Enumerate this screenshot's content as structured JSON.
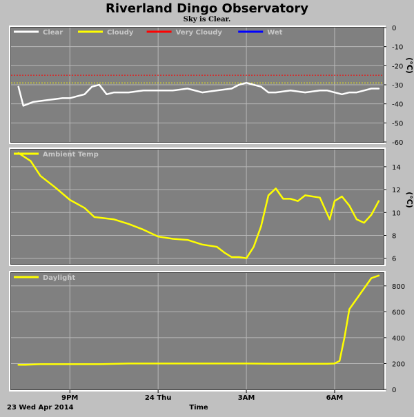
{
  "header": {
    "title": "Riverland Dingo Observatory",
    "subtitle": "Sky is Clear."
  },
  "footer": {
    "date_label": "23 Wed Apr 2014",
    "axis_label": "Time"
  },
  "x_ticks": [
    "9PM",
    "24 Thu",
    "3AM",
    "6AM"
  ],
  "colors": {
    "page_bg": "#c0c0c0",
    "plot_bg": "#808080",
    "grid": "#b8b8b8",
    "clear": "#ffffff",
    "cloudy": "#ffff00",
    "very_cloudy": "#ff0000",
    "wet": "#0000ff",
    "line_yellow": "#ffff00"
  },
  "chart_data": [
    {
      "type": "line",
      "unit_label": "(°C)",
      "ylim": [
        -60,
        0
      ],
      "yticks": [
        0,
        -10,
        -20,
        -30,
        -40,
        -50,
        -60
      ],
      "grid": true,
      "legend": "top-left",
      "legend_entries": [
        {
          "name": "Clear",
          "color": "#ffffff"
        },
        {
          "name": "Cloudy",
          "color": "#ffff00"
        },
        {
          "name": "Very Cloudy",
          "color": "#ff0000"
        },
        {
          "name": "Wet",
          "color": "#0000ff"
        }
      ],
      "thresholds": [
        {
          "name": "Very Cloudy",
          "value": -25,
          "color": "#ff0000"
        },
        {
          "name": "Cloudy",
          "value": -29,
          "color": "#ffff00"
        }
      ],
      "series": [
        {
          "name": "Clear",
          "color": "#ffffff",
          "x": [
            "19:15",
            "19:25",
            "19:45",
            "20:15",
            "20:45",
            "21:00",
            "21:15",
            "21:30",
            "21:45",
            "22:00",
            "22:15",
            "22:30",
            "22:45",
            "23:00",
            "23:30",
            "00:00",
            "00:30",
            "01:00",
            "01:30",
            "02:00",
            "02:30",
            "02:45",
            "03:00",
            "03:15",
            "03:30",
            "03:45",
            "04:00",
            "04:30",
            "05:00",
            "05:30",
            "05:45",
            "06:00",
            "06:15",
            "06:30",
            "06:45",
            "07:00",
            "07:15",
            "07:30"
          ],
          "values": [
            -31,
            -41,
            -39,
            -38,
            -37,
            -37,
            -36,
            -35,
            -31,
            -30,
            -35,
            -34,
            -34,
            -34,
            -33,
            -33,
            -33,
            -32,
            -34,
            -33,
            -32,
            -30,
            -29,
            -30,
            -31,
            -34,
            -34,
            -33,
            -34,
            -33,
            -33,
            -34,
            -35,
            -34,
            -34,
            -33,
            -32,
            -32
          ]
        }
      ]
    },
    {
      "type": "line",
      "unit_label": "(°C)",
      "ylim": [
        5.5,
        15.5
      ],
      "yticks": [
        6,
        8,
        10,
        12,
        14
      ],
      "grid": true,
      "legend": "top-left",
      "legend_entries": [
        {
          "name": "Ambient Temp",
          "color": "#ffff00"
        }
      ],
      "series": [
        {
          "name": "Ambient Temp",
          "color": "#ffff00",
          "x": [
            "19:15",
            "19:40",
            "20:00",
            "20:30",
            "21:00",
            "21:30",
            "21:50",
            "22:30",
            "23:00",
            "23:30",
            "00:00",
            "00:30",
            "01:00",
            "01:30",
            "02:00",
            "02:15",
            "02:30",
            "02:45",
            "03:00",
            "03:15",
            "03:30",
            "03:45",
            "04:00",
            "04:15",
            "04:30",
            "04:45",
            "05:00",
            "05:30",
            "05:50",
            "06:00",
            "06:15",
            "06:30",
            "06:45",
            "07:00",
            "07:15",
            "07:30"
          ],
          "values": [
            15.2,
            14.5,
            13.2,
            12.2,
            11.1,
            10.4,
            9.6,
            9.4,
            9.0,
            8.5,
            7.9,
            7.7,
            7.6,
            7.2,
            7.0,
            6.5,
            6.1,
            6.1,
            6.0,
            7.0,
            8.8,
            11.5,
            12.1,
            11.2,
            11.2,
            11.0,
            11.5,
            11.3,
            9.4,
            11.0,
            11.4,
            10.6,
            9.4,
            9.1,
            9.8,
            11.0
          ]
        }
      ]
    },
    {
      "type": "line",
      "unit_label": "",
      "ylim": [
        0,
        900
      ],
      "yticks": [
        0,
        200,
        400,
        600,
        800
      ],
      "grid": true,
      "legend": "top-left",
      "legend_entries": [
        {
          "name": "Daylight",
          "color": "#ffff00"
        }
      ],
      "series": [
        {
          "name": "Daylight",
          "color": "#ffff00",
          "x": [
            "19:15",
            "19:30",
            "20:00",
            "21:00",
            "22:00",
            "23:00",
            "00:00",
            "01:00",
            "02:00",
            "03:00",
            "04:00",
            "05:00",
            "05:45",
            "06:00",
            "06:10",
            "06:20",
            "06:30",
            "06:45",
            "07:00",
            "07:15",
            "07:30"
          ],
          "values": [
            190,
            190,
            195,
            195,
            195,
            200,
            200,
            200,
            200,
            200,
            198,
            198,
            198,
            200,
            220,
            400,
            620,
            700,
            780,
            860,
            880
          ]
        }
      ]
    }
  ]
}
